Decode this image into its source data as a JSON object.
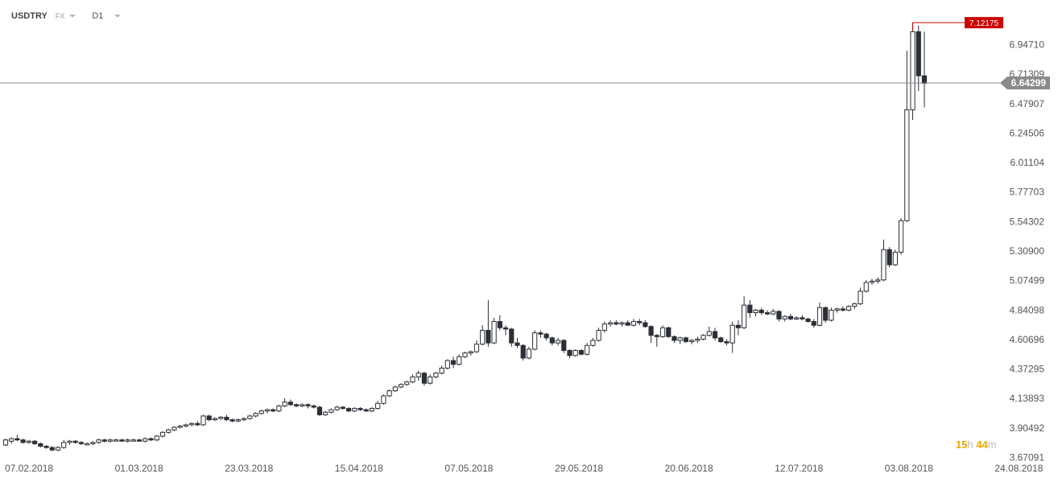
{
  "toolbar": {
    "symbol": "USDTRY",
    "market": "FX",
    "timeframe": "D1"
  },
  "countdown": {
    "hours": "15",
    "hours_unit": "h",
    "minutes": "44",
    "minutes_unit": "m"
  },
  "colors": {
    "up_fill": "#ffffff",
    "down_fill": "#2b2f36",
    "wick": "#2b2f36",
    "current_line": "#8a8a8a",
    "current_tag": "#8a8a8a",
    "high_tag": "#cc0000"
  },
  "chart_data": {
    "type": "candlestick",
    "instrument": "USDTRY",
    "timeframe": "D1",
    "title": "",
    "xlabel": "",
    "ylabel": "",
    "ylim": [
      3.67,
      7.32
    ],
    "y_ticks": [
      "6.94710",
      "6.71309",
      "6.47907",
      "6.24506",
      "6.01104",
      "5.77703",
      "5.54302",
      "5.30900",
      "5.07499",
      "4.84098",
      "4.60696",
      "4.37295",
      "4.13893",
      "3.90492",
      "3.67091"
    ],
    "x_ticks": [
      "07.02.2018",
      "01.03.2018",
      "23.03.2018",
      "15.04.2018",
      "07.05.2018",
      "29.05.2018",
      "20.06.2018",
      "12.07.2018",
      "03.08.2018",
      "24.08.2018"
    ],
    "current_price": "6.64299",
    "high_marker": "7.12175",
    "grid": false,
    "candles": [
      {
        "o": 3.77,
        "h": 3.82,
        "l": 3.76,
        "c": 3.81
      },
      {
        "o": 3.8,
        "h": 3.83,
        "l": 3.78,
        "c": 3.82
      },
      {
        "o": 3.82,
        "h": 3.85,
        "l": 3.8,
        "c": 3.81
      },
      {
        "o": 3.81,
        "h": 3.82,
        "l": 3.78,
        "c": 3.79
      },
      {
        "o": 3.79,
        "h": 3.81,
        "l": 3.78,
        "c": 3.8
      },
      {
        "o": 3.8,
        "h": 3.81,
        "l": 3.77,
        "c": 3.78
      },
      {
        "o": 3.78,
        "h": 3.79,
        "l": 3.75,
        "c": 3.76
      },
      {
        "o": 3.76,
        "h": 3.77,
        "l": 3.74,
        "c": 3.75
      },
      {
        "o": 3.75,
        "h": 3.76,
        "l": 3.72,
        "c": 3.73
      },
      {
        "o": 3.73,
        "h": 3.76,
        "l": 3.72,
        "c": 3.75
      },
      {
        "o": 3.75,
        "h": 3.81,
        "l": 3.74,
        "c": 3.79
      },
      {
        "o": 3.79,
        "h": 3.81,
        "l": 3.77,
        "c": 3.8
      },
      {
        "o": 3.8,
        "h": 3.81,
        "l": 3.78,
        "c": 3.79
      },
      {
        "o": 3.79,
        "h": 3.8,
        "l": 3.77,
        "c": 3.78
      },
      {
        "o": 3.78,
        "h": 3.79,
        "l": 3.77,
        "c": 3.78
      },
      {
        "o": 3.78,
        "h": 3.8,
        "l": 3.77,
        "c": 3.79
      },
      {
        "o": 3.79,
        "h": 3.82,
        "l": 3.78,
        "c": 3.81
      },
      {
        "o": 3.81,
        "h": 3.82,
        "l": 3.79,
        "c": 3.8
      },
      {
        "o": 3.8,
        "h": 3.82,
        "l": 3.79,
        "c": 3.81
      },
      {
        "o": 3.81,
        "h": 3.82,
        "l": 3.8,
        "c": 3.81
      },
      {
        "o": 3.81,
        "h": 3.82,
        "l": 3.8,
        "c": 3.8
      },
      {
        "o": 3.8,
        "h": 3.82,
        "l": 3.79,
        "c": 3.81
      },
      {
        "o": 3.81,
        "h": 3.82,
        "l": 3.8,
        "c": 3.81
      },
      {
        "o": 3.81,
        "h": 3.82,
        "l": 3.8,
        "c": 3.8
      },
      {
        "o": 3.8,
        "h": 3.83,
        "l": 3.79,
        "c": 3.82
      },
      {
        "o": 3.82,
        "h": 3.83,
        "l": 3.8,
        "c": 3.81
      },
      {
        "o": 3.81,
        "h": 3.85,
        "l": 3.8,
        "c": 3.84
      },
      {
        "o": 3.84,
        "h": 3.88,
        "l": 3.83,
        "c": 3.87
      },
      {
        "o": 3.87,
        "h": 3.9,
        "l": 3.86,
        "c": 3.89
      },
      {
        "o": 3.89,
        "h": 3.92,
        "l": 3.88,
        "c": 3.91
      },
      {
        "o": 3.91,
        "h": 3.93,
        "l": 3.9,
        "c": 3.92
      },
      {
        "o": 3.92,
        "h": 3.94,
        "l": 3.91,
        "c": 3.93
      },
      {
        "o": 3.93,
        "h": 3.95,
        "l": 3.92,
        "c": 3.94
      },
      {
        "o": 3.94,
        "h": 3.96,
        "l": 3.92,
        "c": 3.93
      },
      {
        "o": 3.93,
        "h": 4.01,
        "l": 3.92,
        "c": 4.0
      },
      {
        "o": 4.0,
        "h": 4.01,
        "l": 3.96,
        "c": 3.97
      },
      {
        "o": 3.97,
        "h": 3.99,
        "l": 3.96,
        "c": 3.98
      },
      {
        "o": 3.98,
        "h": 4.0,
        "l": 3.97,
        "c": 3.99
      },
      {
        "o": 3.99,
        "h": 4.01,
        "l": 3.96,
        "c": 3.97
      },
      {
        "o": 3.97,
        "h": 3.98,
        "l": 3.95,
        "c": 3.96
      },
      {
        "o": 3.96,
        "h": 3.98,
        "l": 3.95,
        "c": 3.97
      },
      {
        "o": 3.97,
        "h": 3.99,
        "l": 3.96,
        "c": 3.98
      },
      {
        "o": 3.98,
        "h": 4.01,
        "l": 3.97,
        "c": 4.0
      },
      {
        "o": 4.0,
        "h": 4.03,
        "l": 3.99,
        "c": 4.02
      },
      {
        "o": 4.02,
        "h": 4.05,
        "l": 4.01,
        "c": 4.04
      },
      {
        "o": 4.04,
        "h": 4.06,
        "l": 4.02,
        "c": 4.05
      },
      {
        "o": 4.05,
        "h": 4.06,
        "l": 4.03,
        "c": 4.04
      },
      {
        "o": 4.04,
        "h": 4.09,
        "l": 4.03,
        "c": 4.08
      },
      {
        "o": 4.08,
        "h": 4.14,
        "l": 4.07,
        "c": 4.11
      },
      {
        "o": 4.11,
        "h": 4.13,
        "l": 4.08,
        "c": 4.09
      },
      {
        "o": 4.09,
        "h": 4.1,
        "l": 4.07,
        "c": 4.08
      },
      {
        "o": 4.08,
        "h": 4.1,
        "l": 4.07,
        "c": 4.09
      },
      {
        "o": 4.09,
        "h": 4.1,
        "l": 4.06,
        "c": 4.08
      },
      {
        "o": 4.08,
        "h": 4.09,
        "l": 4.06,
        "c": 4.07
      },
      {
        "o": 4.07,
        "h": 4.08,
        "l": 4.0,
        "c": 4.01
      },
      {
        "o": 4.01,
        "h": 4.04,
        "l": 4.0,
        "c": 4.03
      },
      {
        "o": 4.03,
        "h": 4.06,
        "l": 4.02,
        "c": 4.05
      },
      {
        "o": 4.05,
        "h": 4.08,
        "l": 4.04,
        "c": 4.07
      },
      {
        "o": 4.07,
        "h": 4.08,
        "l": 4.05,
        "c": 4.06
      },
      {
        "o": 4.06,
        "h": 4.07,
        "l": 4.03,
        "c": 4.04
      },
      {
        "o": 4.04,
        "h": 4.07,
        "l": 4.03,
        "c": 4.06
      },
      {
        "o": 4.06,
        "h": 4.07,
        "l": 4.04,
        "c": 4.05
      },
      {
        "o": 4.05,
        "h": 4.06,
        "l": 4.03,
        "c": 4.04
      },
      {
        "o": 4.04,
        "h": 4.07,
        "l": 4.03,
        "c": 4.06
      },
      {
        "o": 4.06,
        "h": 4.12,
        "l": 4.05,
        "c": 4.1
      },
      {
        "o": 4.1,
        "h": 4.17,
        "l": 4.09,
        "c": 4.16
      },
      {
        "o": 4.16,
        "h": 4.21,
        "l": 4.15,
        "c": 4.2
      },
      {
        "o": 4.2,
        "h": 4.24,
        "l": 4.19,
        "c": 4.23
      },
      {
        "o": 4.23,
        "h": 4.26,
        "l": 4.22,
        "c": 4.25
      },
      {
        "o": 4.25,
        "h": 4.28,
        "l": 4.24,
        "c": 4.27
      },
      {
        "o": 4.27,
        "h": 4.33,
        "l": 4.26,
        "c": 4.31
      },
      {
        "o": 4.31,
        "h": 4.36,
        "l": 4.28,
        "c": 4.34
      },
      {
        "o": 4.34,
        "h": 4.35,
        "l": 4.24,
        "c": 4.26
      },
      {
        "o": 4.26,
        "h": 4.33,
        "l": 4.25,
        "c": 4.31
      },
      {
        "o": 4.31,
        "h": 4.35,
        "l": 4.3,
        "c": 4.34
      },
      {
        "o": 4.34,
        "h": 4.4,
        "l": 4.33,
        "c": 4.38
      },
      {
        "o": 4.38,
        "h": 4.45,
        "l": 4.37,
        "c": 4.44
      },
      {
        "o": 4.44,
        "h": 4.47,
        "l": 4.38,
        "c": 4.41
      },
      {
        "o": 4.41,
        "h": 4.49,
        "l": 4.4,
        "c": 4.47
      },
      {
        "o": 4.47,
        "h": 4.51,
        "l": 4.46,
        "c": 4.5
      },
      {
        "o": 4.5,
        "h": 4.52,
        "l": 4.48,
        "c": 4.51
      },
      {
        "o": 4.51,
        "h": 4.6,
        "l": 4.5,
        "c": 4.57
      },
      {
        "o": 4.57,
        "h": 4.72,
        "l": 4.56,
        "c": 4.68
      },
      {
        "o": 4.68,
        "h": 4.92,
        "l": 4.55,
        "c": 4.58
      },
      {
        "o": 4.58,
        "h": 4.78,
        "l": 4.57,
        "c": 4.75
      },
      {
        "o": 4.75,
        "h": 4.8,
        "l": 4.68,
        "c": 4.7
      },
      {
        "o": 4.7,
        "h": 4.72,
        "l": 4.64,
        "c": 4.69
      },
      {
        "o": 4.69,
        "h": 4.7,
        "l": 4.55,
        "c": 4.58
      },
      {
        "o": 4.58,
        "h": 4.62,
        "l": 4.54,
        "c": 4.56
      },
      {
        "o": 4.56,
        "h": 4.57,
        "l": 4.44,
        "c": 4.46
      },
      {
        "o": 4.46,
        "h": 4.55,
        "l": 4.45,
        "c": 4.53
      },
      {
        "o": 4.53,
        "h": 4.68,
        "l": 4.52,
        "c": 4.66
      },
      {
        "o": 4.66,
        "h": 4.68,
        "l": 4.62,
        "c": 4.65
      },
      {
        "o": 4.65,
        "h": 4.66,
        "l": 4.6,
        "c": 4.62
      },
      {
        "o": 4.62,
        "h": 4.63,
        "l": 4.56,
        "c": 4.58
      },
      {
        "o": 4.58,
        "h": 4.62,
        "l": 4.56,
        "c": 4.6
      },
      {
        "o": 4.6,
        "h": 4.61,
        "l": 4.5,
        "c": 4.52
      },
      {
        "o": 4.52,
        "h": 4.53,
        "l": 4.46,
        "c": 4.48
      },
      {
        "o": 4.48,
        "h": 4.53,
        "l": 4.47,
        "c": 4.52
      },
      {
        "o": 4.52,
        "h": 4.53,
        "l": 4.48,
        "c": 4.49
      },
      {
        "o": 4.49,
        "h": 4.58,
        "l": 4.48,
        "c": 4.56
      },
      {
        "o": 4.56,
        "h": 4.62,
        "l": 4.55,
        "c": 4.6
      },
      {
        "o": 4.6,
        "h": 4.7,
        "l": 4.59,
        "c": 4.68
      },
      {
        "o": 4.68,
        "h": 4.75,
        "l": 4.66,
        "c": 4.73
      },
      {
        "o": 4.73,
        "h": 4.76,
        "l": 4.71,
        "c": 4.74
      },
      {
        "o": 4.74,
        "h": 4.76,
        "l": 4.72,
        "c": 4.73
      },
      {
        "o": 4.73,
        "h": 4.75,
        "l": 4.71,
        "c": 4.74
      },
      {
        "o": 4.74,
        "h": 4.76,
        "l": 4.72,
        "c": 4.72
      },
      {
        "o": 4.72,
        "h": 4.77,
        "l": 4.71,
        "c": 4.75
      },
      {
        "o": 4.75,
        "h": 4.77,
        "l": 4.72,
        "c": 4.74
      },
      {
        "o": 4.74,
        "h": 4.76,
        "l": 4.7,
        "c": 4.71
      },
      {
        "o": 4.71,
        "h": 4.72,
        "l": 4.58,
        "c": 4.64
      },
      {
        "o": 4.64,
        "h": 4.65,
        "l": 4.55,
        "c": 4.63
      },
      {
        "o": 4.63,
        "h": 4.72,
        "l": 4.62,
        "c": 4.7
      },
      {
        "o": 4.7,
        "h": 4.71,
        "l": 4.62,
        "c": 4.63
      },
      {
        "o": 4.63,
        "h": 4.64,
        "l": 4.58,
        "c": 4.6
      },
      {
        "o": 4.6,
        "h": 4.63,
        "l": 4.57,
        "c": 4.62
      },
      {
        "o": 4.62,
        "h": 4.63,
        "l": 4.58,
        "c": 4.59
      },
      {
        "o": 4.59,
        "h": 4.61,
        "l": 4.57,
        "c": 4.6
      },
      {
        "o": 4.6,
        "h": 4.63,
        "l": 4.58,
        "c": 4.61
      },
      {
        "o": 4.61,
        "h": 4.65,
        "l": 4.6,
        "c": 4.64
      },
      {
        "o": 4.64,
        "h": 4.71,
        "l": 4.63,
        "c": 4.67
      },
      {
        "o": 4.67,
        "h": 4.7,
        "l": 4.6,
        "c": 4.62
      },
      {
        "o": 4.62,
        "h": 4.63,
        "l": 4.58,
        "c": 4.59
      },
      {
        "o": 4.59,
        "h": 4.61,
        "l": 4.56,
        "c": 4.58
      },
      {
        "o": 4.58,
        "h": 4.75,
        "l": 4.5,
        "c": 4.72
      },
      {
        "o": 4.72,
        "h": 4.76,
        "l": 4.64,
        "c": 4.7
      },
      {
        "o": 4.7,
        "h": 4.95,
        "l": 4.69,
        "c": 4.88
      },
      {
        "o": 4.88,
        "h": 4.92,
        "l": 4.78,
        "c": 4.82
      },
      {
        "o": 4.82,
        "h": 4.85,
        "l": 4.79,
        "c": 4.84
      },
      {
        "o": 4.84,
        "h": 4.86,
        "l": 4.8,
        "c": 4.82
      },
      {
        "o": 4.82,
        "h": 4.84,
        "l": 4.8,
        "c": 4.81
      },
      {
        "o": 4.81,
        "h": 4.85,
        "l": 4.8,
        "c": 4.83
      },
      {
        "o": 4.83,
        "h": 4.84,
        "l": 4.75,
        "c": 4.77
      },
      {
        "o": 4.77,
        "h": 4.8,
        "l": 4.75,
        "c": 4.79
      },
      {
        "o": 4.79,
        "h": 4.81,
        "l": 4.76,
        "c": 4.77
      },
      {
        "o": 4.77,
        "h": 4.79,
        "l": 4.76,
        "c": 4.78
      },
      {
        "o": 4.78,
        "h": 4.8,
        "l": 4.76,
        "c": 4.77
      },
      {
        "o": 4.77,
        "h": 4.78,
        "l": 4.74,
        "c": 4.75
      },
      {
        "o": 4.75,
        "h": 4.77,
        "l": 4.7,
        "c": 4.72
      },
      {
        "o": 4.72,
        "h": 4.9,
        "l": 4.71,
        "c": 4.86
      },
      {
        "o": 4.86,
        "h": 4.87,
        "l": 4.74,
        "c": 4.76
      },
      {
        "o": 4.76,
        "h": 4.86,
        "l": 4.75,
        "c": 4.84
      },
      {
        "o": 4.84,
        "h": 4.86,
        "l": 4.82,
        "c": 4.85
      },
      {
        "o": 4.85,
        "h": 4.87,
        "l": 4.83,
        "c": 4.84
      },
      {
        "o": 4.84,
        "h": 4.88,
        "l": 4.83,
        "c": 4.87
      },
      {
        "o": 4.87,
        "h": 4.9,
        "l": 4.85,
        "c": 4.89
      },
      {
        "o": 4.89,
        "h": 5.02,
        "l": 4.88,
        "c": 4.99
      },
      {
        "o": 4.99,
        "h": 5.08,
        "l": 4.98,
        "c": 5.06
      },
      {
        "o": 5.06,
        "h": 5.09,
        "l": 5.04,
        "c": 5.07
      },
      {
        "o": 5.07,
        "h": 5.1,
        "l": 5.05,
        "c": 5.08
      },
      {
        "o": 5.08,
        "h": 5.4,
        "l": 5.07,
        "c": 5.32
      },
      {
        "o": 5.32,
        "h": 5.34,
        "l": 5.18,
        "c": 5.2
      },
      {
        "o": 5.2,
        "h": 5.32,
        "l": 5.19,
        "c": 5.3
      },
      {
        "o": 5.3,
        "h": 5.57,
        "l": 5.28,
        "c": 5.55
      },
      {
        "o": 5.55,
        "h": 6.9,
        "l": 5.54,
        "c": 6.43
      },
      {
        "o": 6.43,
        "h": 7.12,
        "l": 6.35,
        "c": 7.05
      },
      {
        "o": 7.05,
        "h": 7.1,
        "l": 6.58,
        "c": 6.7
      },
      {
        "o": 6.7,
        "h": 7.05,
        "l": 6.45,
        "c": 6.64
      }
    ]
  }
}
